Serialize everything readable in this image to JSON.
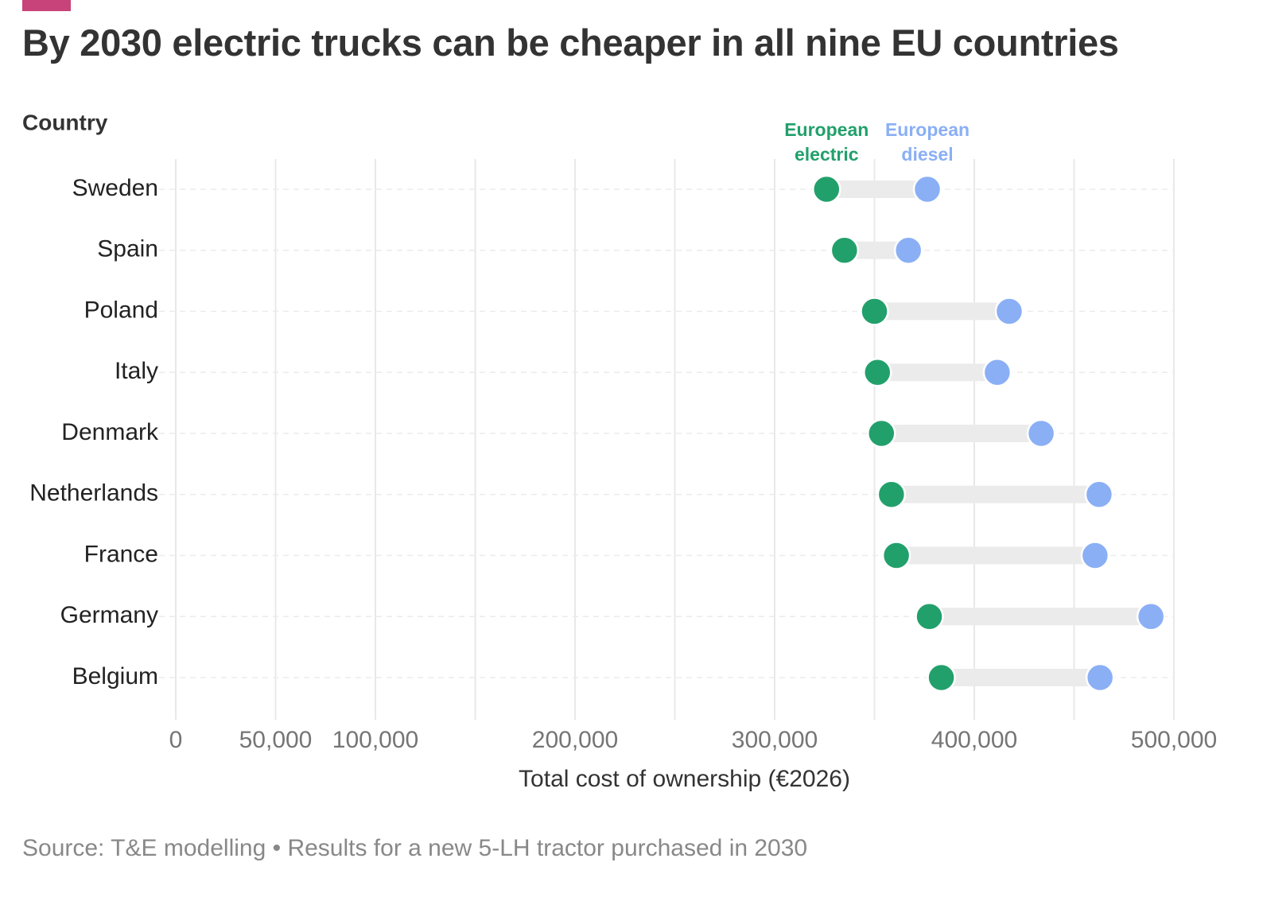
{
  "header": {
    "title": "By 2030 electric trucks can be cheaper in all nine EU countries",
    "accent_color": "#c7437a"
  },
  "chart_data": {
    "type": "dumbbell",
    "y_header": "Country",
    "xlabel": "Total cost of ownership (€2026)",
    "xlim": [
      0,
      500000
    ],
    "x_ticks": [
      0,
      50000,
      100000,
      200000,
      300000,
      400000,
      500000
    ],
    "x_tick_labels": [
      "0",
      "50,000",
      "100,000",
      "200,000",
      "300,000",
      "400,000",
      "500,000"
    ],
    "x_gridlines": [
      0,
      50000,
      100000,
      150000,
      200000,
      250000,
      300000,
      350000,
      400000,
      450000,
      500000
    ],
    "grid": true,
    "categories": [
      "Sweden",
      "Spain",
      "Poland",
      "Italy",
      "Denmark",
      "Netherlands",
      "France",
      "Germany",
      "Belgium"
    ],
    "series": [
      {
        "name": "European electric",
        "legend_label": [
          "European",
          "electric"
        ],
        "color": "#22a06b",
        "values": [
          326000,
          335000,
          350000,
          351500,
          353500,
          358500,
          361000,
          377500,
          383500
        ]
      },
      {
        "name": "European diesel",
        "legend_label": [
          "European",
          "diesel"
        ],
        "color": "#8aaff5",
        "values": [
          376500,
          367000,
          417500,
          411500,
          433500,
          462500,
          460500,
          488500,
          463000
        ]
      }
    ],
    "connector_color": "#ebebeb",
    "legend_placement": "top, above first row"
  },
  "footer": {
    "source": "Source: T&E modelling • Results for a new 5-LH tractor purchased in 2030"
  }
}
